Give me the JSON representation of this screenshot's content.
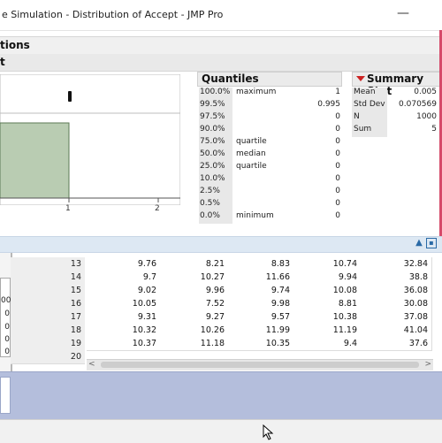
{
  "window": {
    "title": "e Simulation - Distribution of Accept - JMP Pro"
  },
  "headers": {
    "section1": "tions",
    "section2": "t"
  },
  "chart": {
    "x_ticks": [
      "1",
      "2"
    ],
    "bar_color": "#b9ccb2"
  },
  "quantiles": {
    "title": "Quantiles",
    "rows": [
      {
        "pct": "100.0%",
        "desc": "maximum",
        "val": "1"
      },
      {
        "pct": "99.5%",
        "desc": "",
        "val": "0.995"
      },
      {
        "pct": "97.5%",
        "desc": "",
        "val": "0"
      },
      {
        "pct": "90.0%",
        "desc": "",
        "val": "0"
      },
      {
        "pct": "75.0%",
        "desc": "quartile",
        "val": "0"
      },
      {
        "pct": "50.0%",
        "desc": "median",
        "val": "0"
      },
      {
        "pct": "25.0%",
        "desc": "quartile",
        "val": "0"
      },
      {
        "pct": "10.0%",
        "desc": "",
        "val": "0"
      },
      {
        "pct": "2.5%",
        "desc": "",
        "val": "0"
      },
      {
        "pct": "0.5%",
        "desc": "",
        "val": "0"
      },
      {
        "pct": "0.0%",
        "desc": "minimum",
        "val": "0"
      }
    ]
  },
  "summary": {
    "title": "Summary Stat",
    "rows": [
      {
        "k": "Mean",
        "v": "0.005"
      },
      {
        "k": "Std Dev",
        "v": "0.070569"
      },
      {
        "k": "N",
        "v": "1000"
      },
      {
        "k": "Sum",
        "v": "5"
      }
    ]
  },
  "table": {
    "rows": [
      {
        "n": "13",
        "c": [
          "9.76",
          "8.21",
          "8.83",
          "10.74",
          "32.84"
        ]
      },
      {
        "n": "14",
        "c": [
          "9.7",
          "10.27",
          "11.66",
          "9.94",
          "38.8"
        ]
      },
      {
        "n": "15",
        "c": [
          "9.02",
          "9.96",
          "9.74",
          "10.08",
          "36.08"
        ]
      },
      {
        "n": "16",
        "c": [
          "10.05",
          "7.52",
          "9.98",
          "8.81",
          "30.08"
        ]
      },
      {
        "n": "17",
        "c": [
          "9.31",
          "9.27",
          "9.57",
          "10.38",
          "37.08"
        ]
      },
      {
        "n": "18",
        "c": [
          "10.32",
          "10.26",
          "11.99",
          "11.19",
          "41.04"
        ]
      },
      {
        "n": "19",
        "c": [
          "10.37",
          "11.18",
          "10.35",
          "9.4",
          "37.6"
        ]
      },
      {
        "n": "20",
        "c": []
      }
    ],
    "left_values": [
      "00",
      "0",
      "0",
      "0",
      "0"
    ]
  },
  "icons": {
    "collapse": "up-arrow-icon",
    "expand": "window-icon"
  }
}
